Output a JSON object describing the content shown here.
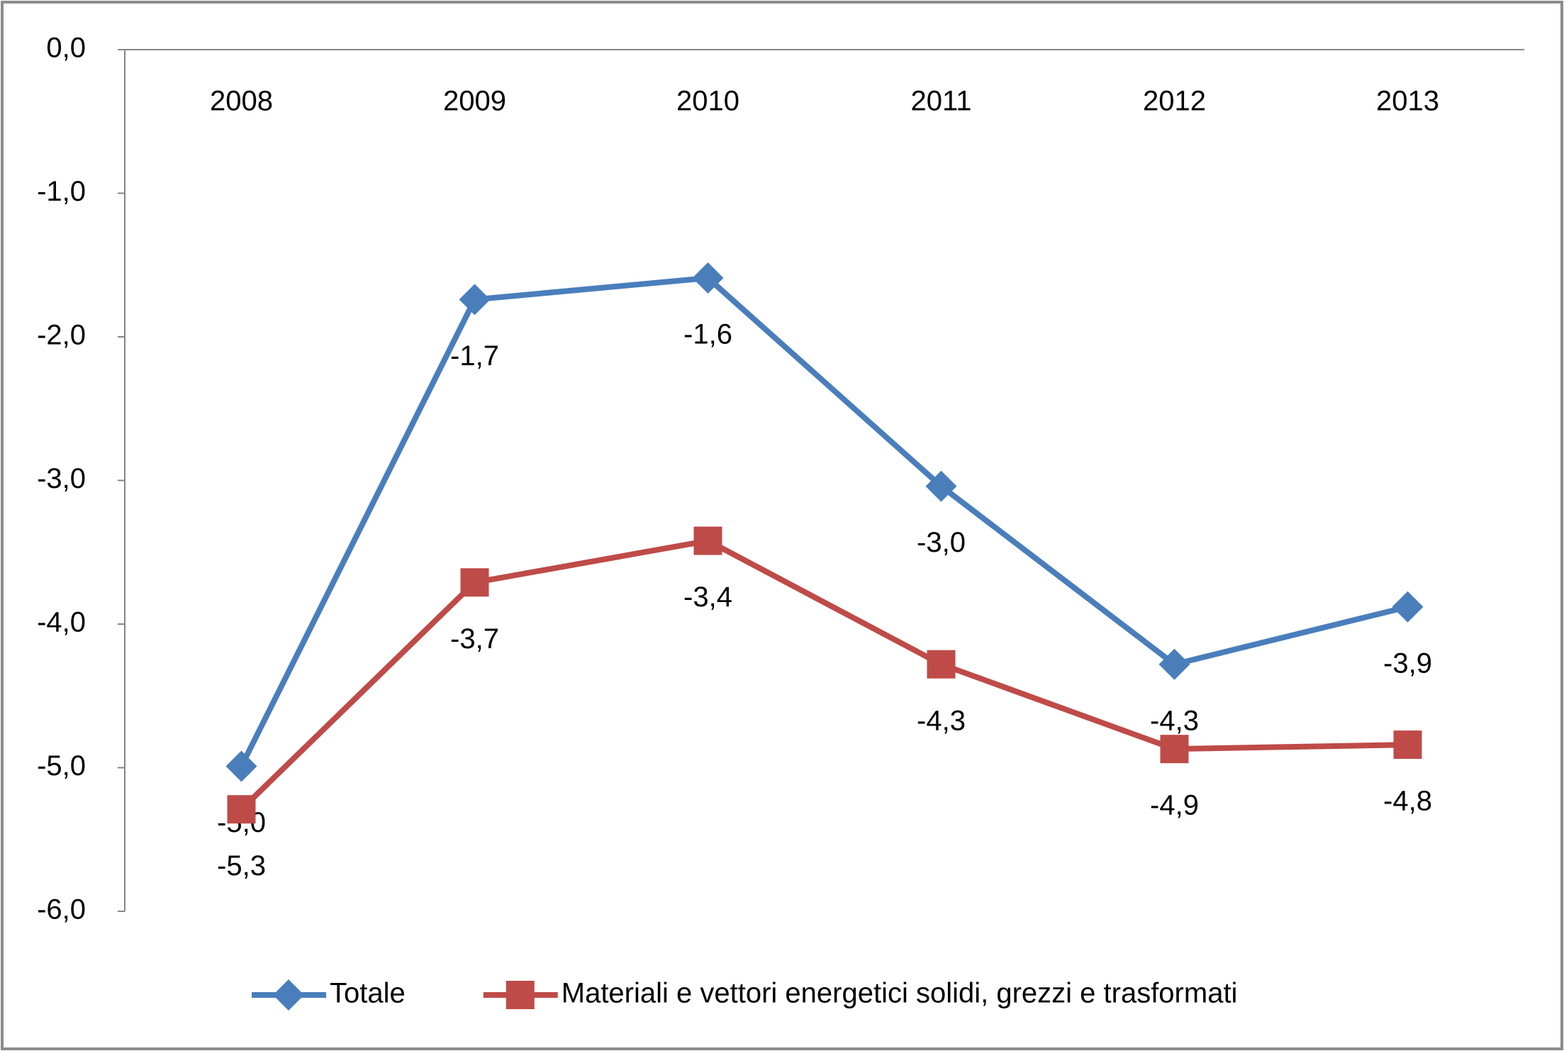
{
  "chart_data": {
    "type": "line",
    "categories": [
      "2008",
      "2009",
      "2010",
      "2011",
      "2012",
      "2013"
    ],
    "series": [
      {
        "name": "Totale",
        "color": "#4a7ebb",
        "marker": "diamond",
        "values": [
          -4.99,
          -1.74,
          -1.59,
          -3.04,
          -4.28,
          -3.88
        ],
        "value_labels": [
          "-5,0",
          "-1,7",
          "-1,6",
          "-3,0",
          "-4,3",
          "-3,9"
        ]
      },
      {
        "name": "Materiali e vettori energetici solidi, grezzi e trasformati",
        "color": "#be4b48",
        "marker": "square",
        "values": [
          -5.29,
          -3.71,
          -3.42,
          -4.28,
          -4.87,
          -4.84
        ],
        "value_labels": [
          "-5,3",
          "-3,7",
          "-3,4",
          "-4,3",
          "-4,9",
          "-4,8"
        ]
      }
    ],
    "ylim": [
      -6,
      0
    ],
    "yticks": [
      {
        "value": 0,
        "label": "0,0"
      },
      {
        "value": -1,
        "label": "-1,0"
      },
      {
        "value": -2,
        "label": "-2,0"
      },
      {
        "value": -3,
        "label": "-3,0"
      },
      {
        "value": -4,
        "label": "-4,0"
      },
      {
        "value": -5,
        "label": "-5,0"
      },
      {
        "value": -6,
        "label": "-6,0"
      }
    ],
    "legend": "bottom"
  }
}
